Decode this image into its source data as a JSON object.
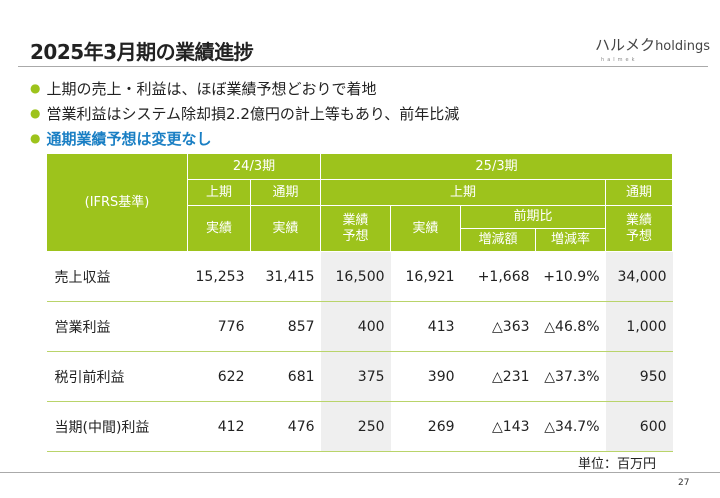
{
  "header": {
    "title": "2025年3月期の業績進捗",
    "logo": "ハルメク",
    "logo_suffix": "holdings",
    "logo_sub": "halmek"
  },
  "bullets": [
    {
      "text": "上期の売上・利益は、ほぼ業績予想どおりで着地"
    },
    {
      "text": "営業利益はシステム除却損2.2億円の計上等もあり、前年比減"
    },
    {
      "text": "通期業績予想は変更なし",
      "highlight": true
    }
  ],
  "table": {
    "corner": "(IFRS基準)",
    "fy24": "24/3期",
    "fy25": "25/3期",
    "h1": "上期",
    "full": "通期",
    "h1_25": "上期",
    "full_25": "通期",
    "actual": "実績",
    "forecast": "業績\n予想",
    "yoy": "前期比",
    "chg_amt": "増減額",
    "chg_rate": "増減率",
    "rows": [
      {
        "label": "売上収益",
        "v": [
          "15,253",
          "31,415",
          "16,500",
          "16,921",
          "+1,668",
          "+10.9%",
          "34,000"
        ]
      },
      {
        "label": "営業利益",
        "v": [
          "776",
          "857",
          "400",
          "413",
          "△363",
          "△46.8%",
          "1,000"
        ]
      },
      {
        "label": "税引前利益",
        "v": [
          "622",
          "681",
          "375",
          "390",
          "△231",
          "△37.3%",
          "950"
        ]
      },
      {
        "label": "当期(中間)利益",
        "v": [
          "412",
          "476",
          "250",
          "269",
          "△143",
          "△34.7%",
          "600"
        ]
      }
    ]
  },
  "unit": "単位：百万円",
  "page_number": "27",
  "colors": {
    "accent": "#9dc31c",
    "highlight": "#1a7fc4",
    "shade": "#efefef"
  }
}
